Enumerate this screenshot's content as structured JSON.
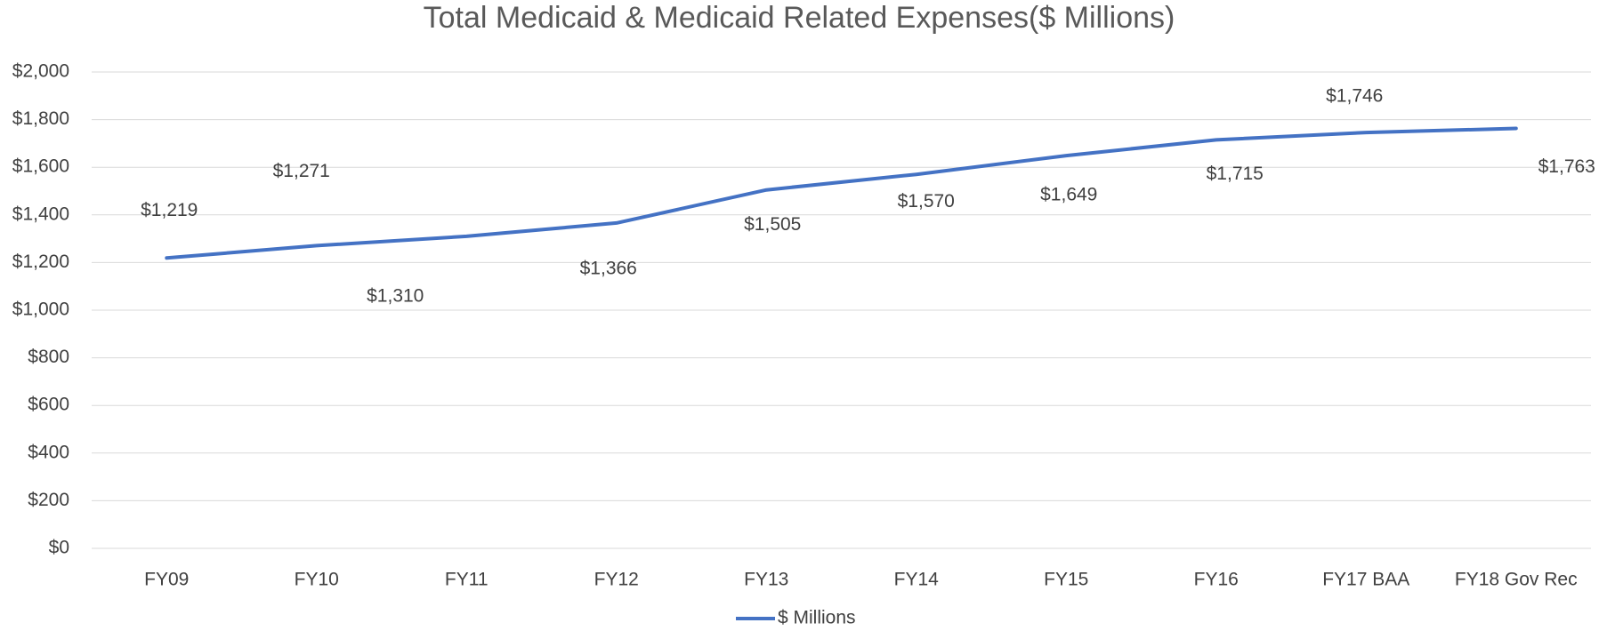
{
  "chart_data": {
    "type": "line",
    "title": "Total Medicaid & Medicaid Related Expenses($ Millions)",
    "categories": [
      "FY09",
      "FY10",
      "FY11",
      "FY12",
      "FY13",
      "FY14",
      "FY15",
      "FY16",
      "FY17 BAA",
      "FY18 Gov Rec"
    ],
    "series": [
      {
        "name": "$ Millions",
        "color": "#4472c4",
        "values": [
          1219,
          1271,
          1310,
          1366,
          1505,
          1570,
          1649,
          1715,
          1746,
          1763
        ],
        "value_labels": [
          "$1,219",
          "$1,271",
          "$1,310",
          "$1,366",
          "$1,505",
          "$1,570",
          "$1,649",
          "$1,715",
          "$1,746",
          "$1,763"
        ]
      }
    ],
    "ylim": [
      0,
      2000
    ],
    "yticks": [
      {
        "value": 0,
        "label": "$0"
      },
      {
        "value": 200,
        "label": "$200"
      },
      {
        "value": 400,
        "label": "$400"
      },
      {
        "value": 600,
        "label": "$600"
      },
      {
        "value": 800,
        "label": "$800"
      },
      {
        "value": 1000,
        "label": "$1,000"
      },
      {
        "value": 1200,
        "label": "$1,200"
      },
      {
        "value": 1400,
        "label": "$1,400"
      },
      {
        "value": 1600,
        "label": "$1,600"
      },
      {
        "value": 1800,
        "label": "$1,800"
      },
      {
        "value": 2000,
        "label": "$2,000"
      }
    ],
    "grid": true,
    "legend": "bottom"
  }
}
